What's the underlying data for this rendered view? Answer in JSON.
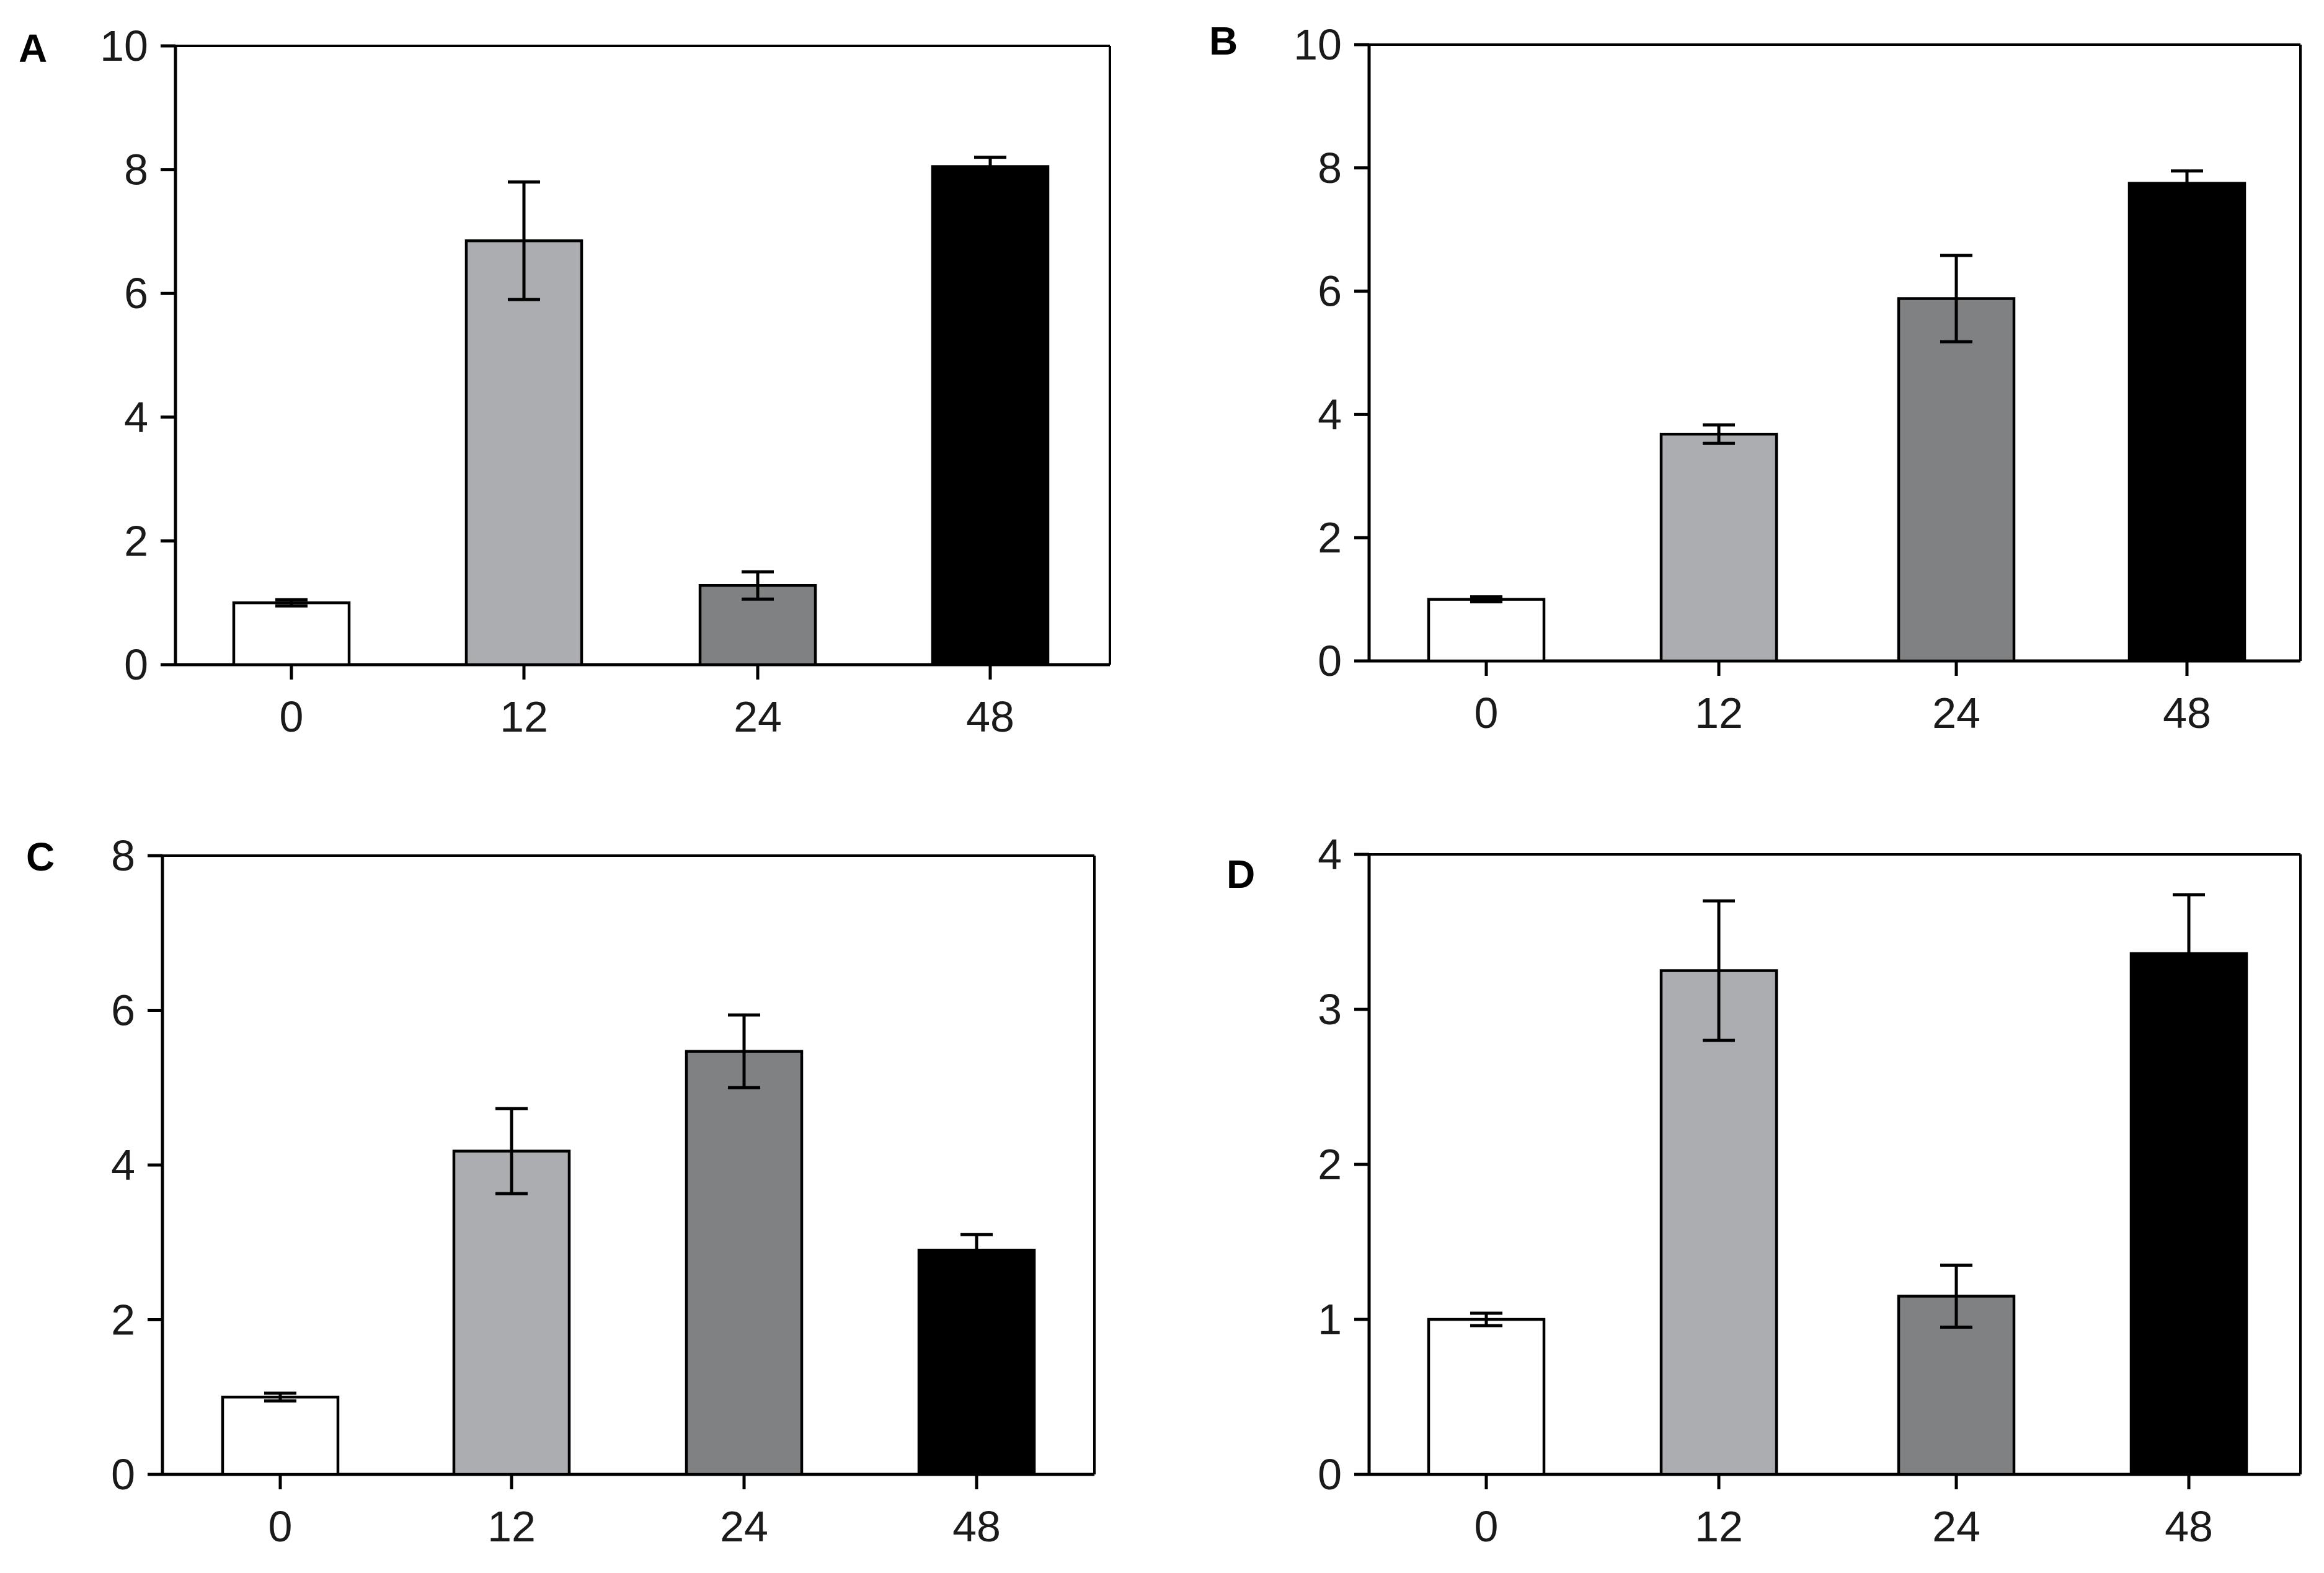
{
  "chart_data": [
    {
      "panel": "A",
      "type": "bar",
      "categories": [
        "0",
        "12",
        "24",
        "48"
      ],
      "values": [
        1.0,
        6.85,
        1.28,
        8.05
      ],
      "errors": [
        0.05,
        0.95,
        0.22,
        0.15
      ],
      "colors": [
        "#ffffff",
        "#abadb0",
        "#7f8182",
        "#000000"
      ],
      "ylim": [
        0,
        10
      ],
      "yticks": [
        "0",
        "2",
        "4",
        "6",
        "8",
        "10"
      ],
      "ytick_values": [
        0,
        2,
        4,
        6,
        8,
        10
      ],
      "title": "",
      "xlabel": "",
      "ylabel": ""
    },
    {
      "panel": "B",
      "type": "bar",
      "categories": [
        "0",
        "12",
        "24",
        "48"
      ],
      "values": [
        1.0,
        3.68,
        5.88,
        7.75
      ],
      "errors": [
        0.04,
        0.15,
        0.7,
        0.2
      ],
      "colors": [
        "#ffffff",
        "#abadb0",
        "#7f8182",
        "#000000"
      ],
      "ylim": [
        0,
        10
      ],
      "yticks": [
        "0",
        "2",
        "4",
        "6",
        "8",
        "10"
      ],
      "ytick_values": [
        0,
        2,
        4,
        6,
        8,
        10
      ],
      "title": "",
      "xlabel": "",
      "ylabel": ""
    },
    {
      "panel": "C",
      "type": "bar",
      "categories": [
        "0",
        "12",
        "24",
        "48"
      ],
      "values": [
        1.0,
        4.18,
        5.47,
        2.9
      ],
      "errors": [
        0.05,
        0.55,
        0.47,
        0.2
      ],
      "colors": [
        "#ffffff",
        "#abadb0",
        "#7f8182",
        "#000000"
      ],
      "ylim": [
        0,
        8
      ],
      "yticks": [
        "0",
        "2",
        "4",
        "6",
        "8"
      ],
      "ytick_values": [
        0,
        2,
        4,
        6,
        8
      ],
      "title": "",
      "xlabel": "",
      "ylabel": ""
    },
    {
      "panel": "D",
      "type": "bar",
      "categories": [
        "0",
        "12",
        "24",
        "48"
      ],
      "values": [
        1.0,
        3.25,
        1.15,
        3.36
      ],
      "errors": [
        0.04,
        0.45,
        0.2,
        0.38
      ],
      "colors": [
        "#ffffff",
        "#abadb0",
        "#7f8182",
        "#000000"
      ],
      "ylim": [
        0,
        4
      ],
      "yticks": [
        "0",
        "1",
        "2",
        "3",
        "4"
      ],
      "ytick_values": [
        0,
        1,
        2,
        3,
        4
      ],
      "title": "",
      "xlabel": "",
      "ylabel": ""
    }
  ]
}
